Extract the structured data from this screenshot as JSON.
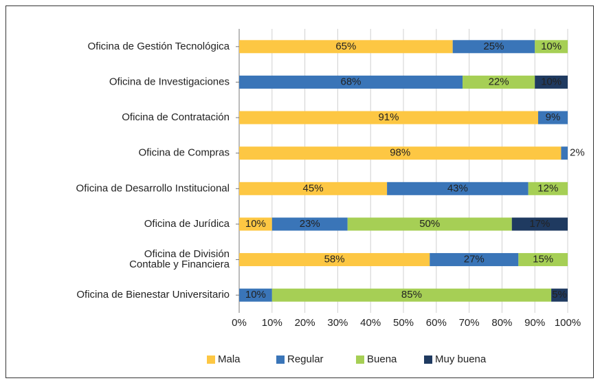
{
  "chart_data": {
    "type": "stacked_barh",
    "categories": [
      "Oficina de Gestión Tecnológica",
      "Oficina de Investigaciones",
      "Oficina de Contratación",
      "Oficina de Compras",
      "Oficina de Desarrollo Institucional",
      "Oficina de Jurídica",
      "Oficina de División\nContable y Financiera",
      "Oficina de Bienestar Universitario"
    ],
    "series": [
      {
        "name": "Mala",
        "color": "#fdc743",
        "values": [
          65,
          null,
          91,
          98,
          45,
          10,
          58,
          null
        ],
        "value_labels": [
          "65%",
          null,
          "91%",
          "98%",
          "45%",
          "10%",
          "58%",
          null
        ]
      },
      {
        "name": "Regular",
        "color": "#3a75b8",
        "values": [
          25,
          68,
          9,
          2,
          43,
          23,
          27,
          10
        ],
        "value_labels": [
          "25%",
          "68%",
          "9%",
          "2%",
          "43%",
          "23%",
          "27%",
          "10%"
        ]
      },
      {
        "name": "Buena",
        "color": "#a6cf55",
        "values": [
          10,
          22,
          null,
          null,
          12,
          50,
          15,
          85
        ],
        "value_labels": [
          "10%",
          "22%",
          null,
          null,
          "12%",
          "50%",
          "15%",
          "85%"
        ]
      },
      {
        "name": "Muy buena",
        "color": "#1f3a60",
        "values": [
          null,
          10,
          null,
          null,
          null,
          17,
          null,
          5
        ],
        "value_labels": [
          null,
          "10%",
          null,
          null,
          null,
          "17%",
          null,
          "5%"
        ]
      }
    ],
    "xlim": [
      0,
      100
    ],
    "xticks": [
      {
        "value": 0,
        "label": "0%"
      },
      {
        "value": 10,
        "label": "10%"
      },
      {
        "value": 20,
        "label": "20%"
      },
      {
        "value": 30,
        "label": "30%"
      },
      {
        "value": 40,
        "label": "40%"
      },
      {
        "value": 50,
        "label": "50%"
      },
      {
        "value": 60,
        "label": "60%"
      },
      {
        "value": 70,
        "label": "70%"
      },
      {
        "value": 80,
        "label": "80%"
      },
      {
        "value": 90,
        "label": "90%"
      },
      {
        "value": 100,
        "label": "100%"
      }
    ],
    "grid": true,
    "legend": "bottom"
  }
}
